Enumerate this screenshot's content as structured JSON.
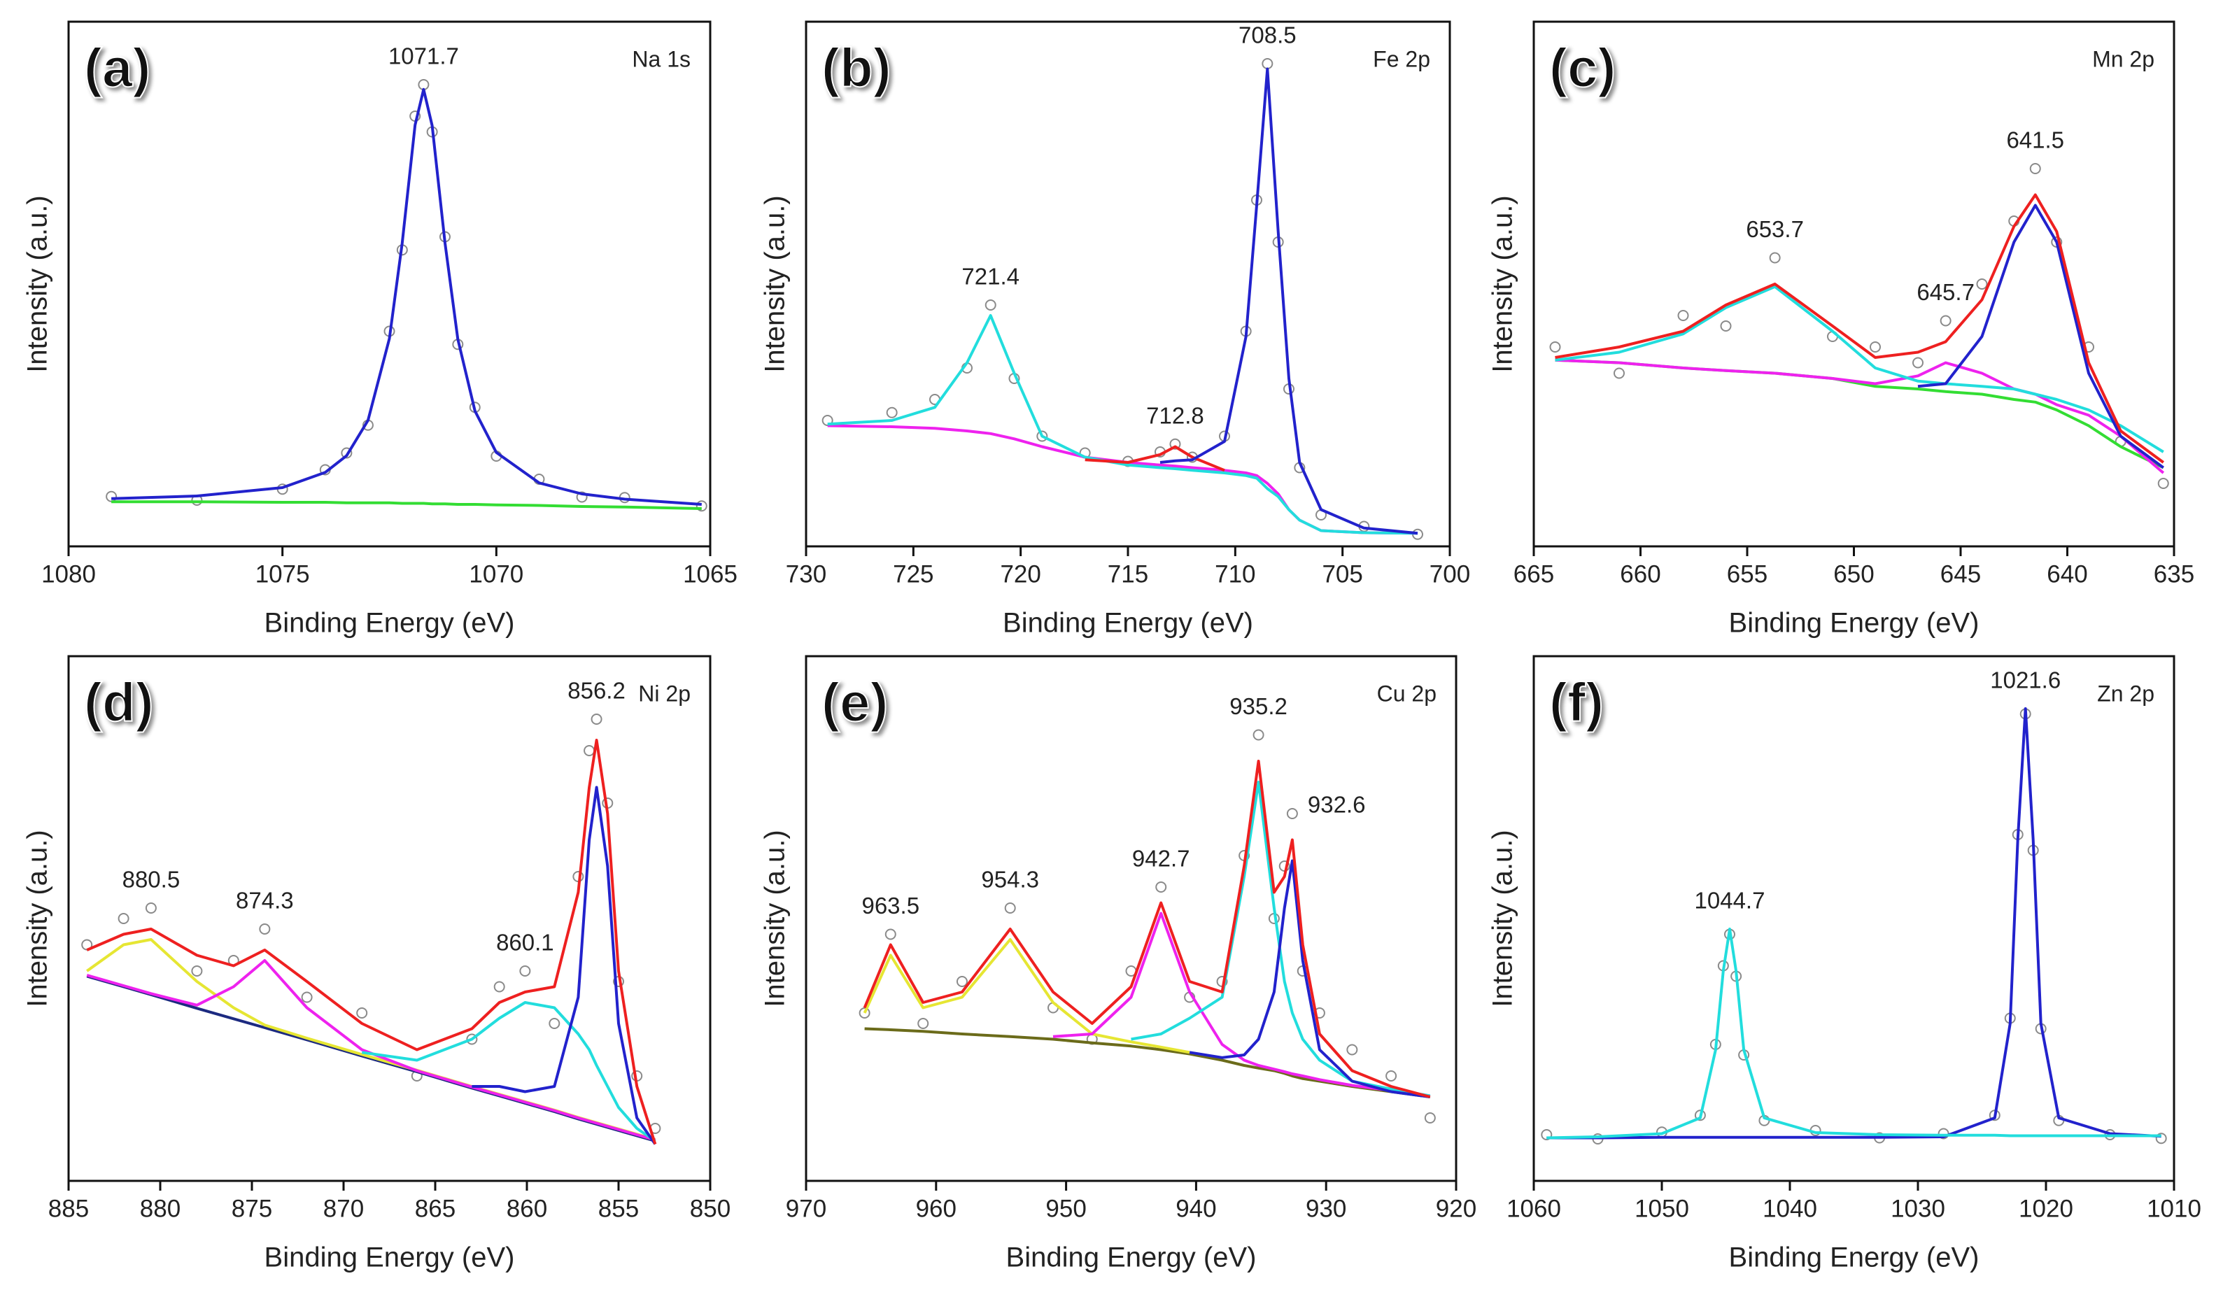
{
  "chart_data": [
    {
      "type": "line",
      "panel_label": "(a)",
      "element": "Na 1s",
      "xlabel": "Binding Energy (eV)",
      "ylabel": "Intensity (a.u.)",
      "xlim": [
        1080,
        1065
      ],
      "xticks": [
        1080,
        1075,
        1070,
        1065
      ],
      "ylim": [
        0,
        100
      ],
      "peaks": [
        1071.7
      ],
      "x": [
        1079,
        1077,
        1075,
        1074,
        1073.5,
        1073,
        1072.5,
        1072.2,
        1071.9,
        1071.7,
        1071.5,
        1071.2,
        1070.9,
        1070.5,
        1070,
        1069,
        1068,
        1067,
        1065.2
      ],
      "series": [
        {
          "color": "#8a8a8a",
          "marker": "circle",
          "values": [
            9.5,
            8.8,
            10.9,
            14.6,
            17.8,
            23.1,
            41.0,
            56.5,
            82.0,
            88.0,
            79.0,
            59.0,
            38.5,
            26.5,
            17.2,
            12.8,
            9.4,
            9.3,
            7.7
          ]
        },
        {
          "color": "#33dd33",
          "values": [
            8.5,
            8.5,
            8.4,
            8.4,
            8.3,
            8.3,
            8.3,
            8.2,
            8.2,
            8.2,
            8.1,
            8.1,
            8.0,
            8.0,
            7.9,
            7.8,
            7.6,
            7.5,
            7.2
          ]
        },
        {
          "color": "#2222cc",
          "values": [
            9.1,
            9.6,
            11.2,
            14.1,
            17.3,
            24.0,
            39.6,
            57.8,
            80.3,
            87.1,
            80.2,
            57.8,
            39.5,
            25.8,
            17.9,
            12.1,
            10.0,
            9.0,
            8.0
          ]
        }
      ]
    },
    {
      "type": "line",
      "panel_label": "(b)",
      "element": "Fe 2p",
      "xlabel": "Binding Energy (eV)",
      "ylabel": "Intensity (a.u.)",
      "xlim": [
        730,
        700
      ],
      "xticks": [
        730,
        725,
        720,
        715,
        710,
        705,
        700
      ],
      "ylim": [
        0,
        100
      ],
      "peaks": [
        721.4,
        712.8,
        708.5
      ],
      "x": [
        729,
        726,
        724,
        722.5,
        721.4,
        720.3,
        719,
        717,
        715,
        713.5,
        712.8,
        712,
        710.5,
        709.5,
        709,
        708.5,
        708,
        707.5,
        707,
        706,
        704,
        701.5
      ],
      "series": [
        {
          "color": "#8a8a8a",
          "marker": "circle",
          "values": [
            24,
            25.5,
            28,
            34,
            46,
            32,
            21,
            17.8,
            16.2,
            18,
            19.5,
            17,
            21,
            41,
            66,
            92,
            58,
            30,
            15,
            6,
            3.8,
            2.3
          ]
        },
        {
          "color": "#ee22ee",
          "values": [
            23,
            22.8,
            22.5,
            22,
            21.5,
            20.5,
            19,
            17,
            16,
            15.5,
            15.3,
            15,
            14.5,
            14,
            13.5,
            12,
            10,
            7,
            5,
            3,
            2.6,
            2.5
          ]
        },
        {
          "color": "#22dddd",
          "values": [
            23.3,
            24,
            26.5,
            35,
            44,
            33,
            21,
            17,
            15.5,
            15,
            14.8,
            14.5,
            14,
            13.5,
            13,
            11,
            9.5,
            7,
            5,
            3,
            2.6,
            2.5
          ]
        },
        {
          "color": "#ee2020",
          "values": [
            null,
            null,
            null,
            null,
            null,
            null,
            null,
            16.5,
            16,
            17.5,
            19,
            17,
            14.5,
            null,
            null,
            null,
            null,
            null,
            null,
            null,
            null,
            null
          ]
        },
        {
          "color": "#2222cc",
          "values": [
            null,
            null,
            null,
            null,
            null,
            null,
            null,
            null,
            null,
            16,
            16.3,
            16.5,
            20,
            40,
            65,
            91,
            60,
            32,
            16,
            7,
            3.5,
            2.5
          ]
        }
      ]
    },
    {
      "type": "line",
      "panel_label": "(c)",
      "element": "Mn 2p",
      "xlabel": "Binding Energy (eV)",
      "ylabel": "Intensity (a.u.)",
      "xlim": [
        665,
        635
      ],
      "xticks": [
        665,
        660,
        655,
        650,
        645,
        640,
        635
      ],
      "ylim": [
        0,
        100
      ],
      "peaks": [
        653.7,
        645.7,
        641.5
      ],
      "x": [
        664,
        661,
        658,
        656,
        653.7,
        651,
        649,
        647,
        645.7,
        644,
        642.5,
        641.5,
        640.5,
        639,
        637.5,
        635.5
      ],
      "series": [
        {
          "color": "#8a8a8a",
          "marker": "circle",
          "values": [
            38,
            33,
            44,
            42,
            55,
            40,
            38,
            35,
            43,
            50,
            62,
            72,
            58,
            38,
            20,
            12
          ]
        },
        {
          "color": "#33dd33",
          "values": [
            35.5,
            35,
            34,
            33.5,
            33,
            32,
            30.5,
            30,
            29.5,
            29,
            28,
            27.5,
            26,
            23,
            19,
            15
          ]
        },
        {
          "color": "#ee22ee",
          "values": [
            35.5,
            35,
            34,
            33.5,
            33,
            32,
            31,
            32.5,
            35,
            33,
            30,
            29,
            27,
            25,
            21,
            14
          ]
        },
        {
          "color": "#22dddd",
          "values": [
            35.5,
            37,
            40.5,
            45.5,
            49.5,
            41,
            34,
            31.5,
            31,
            30.5,
            30,
            29,
            28,
            26,
            23,
            18
          ]
        },
        {
          "color": "#2222cc",
          "values": [
            null,
            null,
            null,
            null,
            null,
            null,
            null,
            30.5,
            31,
            40,
            58,
            65,
            58,
            33,
            21,
            15
          ]
        },
        {
          "color": "#ee2020",
          "values": [
            36,
            38,
            41,
            46,
            50,
            42,
            36,
            37,
            39,
            47,
            61,
            67,
            60,
            35,
            22,
            16
          ]
        }
      ]
    },
    {
      "type": "line",
      "panel_label": "(d)",
      "element": "Ni 2p",
      "xlabel": "Binding Energy (eV)",
      "ylabel": "Intensity (a.u.)",
      "xlim": [
        885,
        850
      ],
      "xticks": [
        885,
        880,
        875,
        870,
        865,
        860,
        855,
        850
      ],
      "ylim": [
        0,
        100
      ],
      "peaks": [
        880.5,
        874.3,
        860.1,
        856.2
      ],
      "x": [
        884,
        882,
        880.5,
        878,
        876,
        874.3,
        872,
        869,
        866,
        863,
        861.5,
        860.1,
        858.5,
        857.2,
        856.6,
        856.2,
        855.6,
        855,
        854,
        853
      ],
      "series": [
        {
          "color": "#8a8a8a",
          "marker": "circle",
          "values": [
            45,
            50,
            52,
            40,
            42,
            48,
            35,
            32,
            20,
            27,
            37,
            40,
            30,
            58,
            82,
            88,
            72,
            38,
            20,
            10
          ]
        },
        {
          "color": "#1c2a80",
          "values": [
            39,
            37,
            35.5,
            32.9,
            30.9,
            29.2,
            26.9,
            23.8,
            20.8,
            17.7,
            16.2,
            14.8,
            13.2,
            11.8,
            11.2,
            10.8,
            10.2,
            9.6,
            8.6,
            7.6
          ]
        },
        {
          "color": "#e6e633",
          "values": [
            40,
            45,
            46,
            38,
            33,
            29.7,
            27.2,
            24.1,
            21.1,
            18,
            16.5,
            15.1,
            13.5,
            12.1,
            11.5,
            11.1,
            10.5,
            9.9,
            8.9,
            7.9
          ]
        },
        {
          "color": "#ee22ee",
          "values": [
            39.2,
            37.2,
            35.7,
            33.5,
            37,
            42,
            33,
            25,
            21,
            17.9,
            16.4,
            15,
            13.4,
            12,
            11.4,
            11,
            10.4,
            9.8,
            8.8,
            7.8
          ]
        },
        {
          "color": "#22dddd",
          "values": [
            null,
            null,
            null,
            null,
            null,
            null,
            null,
            24.5,
            23,
            27,
            31,
            34,
            33,
            28,
            25,
            22,
            18,
            14,
            10,
            7.6
          ]
        },
        {
          "color": "#2222cc",
          "values": [
            null,
            null,
            null,
            null,
            null,
            null,
            null,
            null,
            null,
            18,
            18,
            17,
            18,
            35,
            65,
            75,
            60,
            30,
            12,
            7
          ]
        },
        {
          "color": "#ee2020",
          "values": [
            44,
            47,
            48,
            43,
            41,
            44,
            38,
            30,
            25,
            29,
            34,
            36,
            37,
            55,
            75,
            84,
            70,
            40,
            18,
            7
          ]
        }
      ]
    },
    {
      "type": "line",
      "panel_label": "(e)",
      "element": "Cu 2p",
      "xlabel": "Binding Energy (eV)",
      "ylabel": "Intensity (a.u.)",
      "xlim": [
        970,
        920
      ],
      "xticks": [
        970,
        960,
        950,
        940,
        930,
        920
      ],
      "ylim": [
        0,
        100
      ],
      "peaks": [
        963.5,
        954.3,
        942.7,
        935.2,
        932.6
      ],
      "x": [
        965.5,
        963.5,
        961,
        958,
        954.3,
        951,
        948,
        945,
        942.7,
        940.5,
        938,
        936.3,
        935.2,
        934,
        933.2,
        932.6,
        931.8,
        930.5,
        928,
        925,
        922
      ],
      "series": [
        {
          "color": "#8a8a8a",
          "marker": "circle",
          "values": [
            32,
            47,
            30,
            38,
            52,
            33,
            27,
            40,
            56,
            35,
            38,
            62,
            85,
            50,
            60,
            70,
            40,
            32,
            25,
            20,
            12
          ]
        },
        {
          "color": "#6b6b1a",
          "values": [
            29,
            28.8,
            28.5,
            28,
            27.5,
            27,
            26.3,
            25.7,
            25,
            24.2,
            23,
            22,
            21.5,
            21,
            20.5,
            20,
            19.5,
            19,
            18,
            17,
            16
          ]
        },
        {
          "color": "#e6e633",
          "values": [
            32,
            43,
            33,
            35,
            46,
            34,
            28,
            26.5,
            25.5,
            24.5,
            null,
            null,
            null,
            null,
            null,
            null,
            null,
            null,
            null,
            null,
            null
          ]
        },
        {
          "color": "#ee22ee",
          "values": [
            null,
            null,
            null,
            null,
            null,
            27.5,
            28,
            35,
            51,
            36,
            26,
            23,
            22,
            21.3,
            20.8,
            20.4,
            20,
            19.3,
            18.2,
            17.2,
            16.2
          ]
        },
        {
          "color": "#22dddd",
          "values": [
            null,
            null,
            null,
            null,
            null,
            null,
            null,
            27,
            28,
            31,
            35,
            58,
            76,
            52,
            38,
            32,
            27,
            23,
            19,
            17.5,
            16.2
          ]
        },
        {
          "color": "#2222cc",
          "values": [
            null,
            null,
            null,
            null,
            null,
            null,
            null,
            null,
            null,
            24.5,
            23.5,
            24,
            27,
            36,
            52,
            61,
            42,
            25,
            19,
            17,
            16
          ]
        },
        {
          "color": "#ee2020",
          "values": [
            33,
            45,
            34,
            36,
            48,
            36,
            30,
            37,
            53,
            38,
            36,
            60,
            80,
            55,
            58,
            65,
            45,
            28,
            21,
            18,
            16
          ]
        }
      ]
    },
    {
      "type": "line",
      "panel_label": "(f)",
      "element": "Zn 2p",
      "xlabel": "Binding Energy (eV)",
      "ylabel": "Intensity (a.u.)",
      "xlim": [
        1060,
        1010
      ],
      "xticks": [
        1060,
        1050,
        1040,
        1030,
        1020,
        1010
      ],
      "ylim": [
        0,
        100
      ],
      "peaks": [
        1044.7,
        1021.6
      ],
      "x": [
        1059,
        1055,
        1050,
        1047,
        1045.8,
        1045.2,
        1044.7,
        1044.2,
        1043.6,
        1042,
        1038,
        1033,
        1028,
        1024,
        1022.8,
        1022.2,
        1021.6,
        1021,
        1020.4,
        1019,
        1015,
        1011
      ],
      "series": [
        {
          "color": "#8a8a8a",
          "marker": "circle",
          "values": [
            8.8,
            8.0,
            9.3,
            12.5,
            26,
            41,
            47,
            39,
            24,
            11.5,
            9.6,
            8.2,
            9.0,
            12.5,
            31,
            66,
            89,
            63,
            29,
            11.5,
            8.8,
            8.1
          ]
        },
        {
          "color": "#2222cc",
          "values": [
            8.2,
            8.2,
            8.3,
            8.3,
            8.3,
            8.3,
            8.3,
            8.3,
            8.3,
            8.3,
            8.3,
            8.3,
            8.4,
            12,
            30,
            65,
            90,
            65,
            30,
            12,
            9,
            8.5
          ]
        },
        {
          "color": "#22dddd",
          "values": [
            8.2,
            8.4,
            9,
            12,
            25,
            40,
            48,
            40,
            25,
            12,
            9.2,
            8.8,
            8.7,
            8.7,
            8.6,
            8.6,
            8.6,
            8.6,
            8.6,
            8.6,
            8.6,
            8.6
          ]
        }
      ]
    }
  ]
}
